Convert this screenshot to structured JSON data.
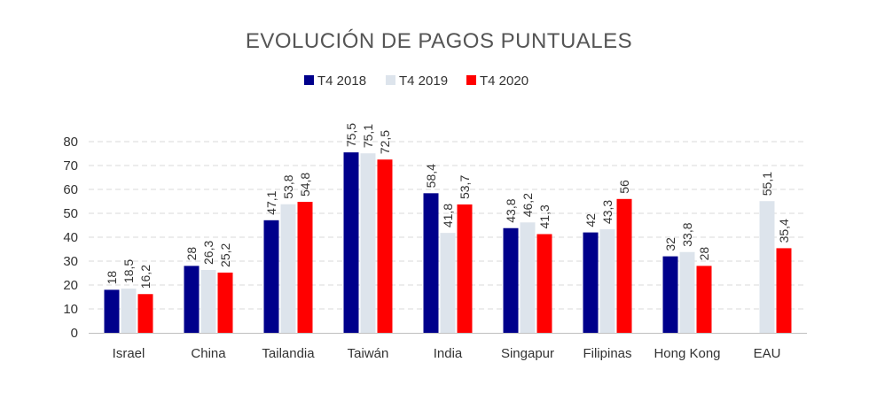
{
  "chart_data": {
    "type": "bar",
    "title": "EVOLUCIÓN DE PAGOS PUNTUALES",
    "xlabel": "",
    "ylabel": "",
    "ylim": [
      0,
      80
    ],
    "yticks": [
      "0",
      "10",
      "20",
      "30",
      "40",
      "50",
      "60",
      "70",
      "80"
    ],
    "grid": true,
    "legend_position": "top-center",
    "categories": [
      "Israel",
      "China",
      "Tailandia",
      "Taiwán",
      "India",
      "Singapur",
      "Filipinas",
      "Hong Kong",
      "EAU"
    ],
    "series": [
      {
        "name": "T4 2018",
        "color": "#00008b",
        "values": [
          18,
          28,
          47.1,
          75.5,
          58.4,
          43.8,
          42,
          32,
          null
        ],
        "labels": [
          "18",
          "28",
          "47,1",
          "75,5",
          "58,4",
          "43,8",
          "42",
          "32",
          ""
        ]
      },
      {
        "name": "T4 2019",
        "color": "#dde4ec",
        "values": [
          18.5,
          26.3,
          53.8,
          75.1,
          41.8,
          46.2,
          43.3,
          33.8,
          55.1
        ],
        "labels": [
          "18,5",
          "26,3",
          "53,8",
          "75,1",
          "41,8",
          "46,2",
          "43,3",
          "33,8",
          "55,1"
        ]
      },
      {
        "name": "T4 2020",
        "color": "#ff0000",
        "values": [
          16.2,
          25.2,
          54.8,
          72.5,
          53.7,
          41.3,
          56,
          28,
          35.4
        ],
        "labels": [
          "16,2",
          "25,2",
          "54,8",
          "72,5",
          "53,7",
          "41,3",
          "56",
          "28",
          "35,4"
        ]
      }
    ]
  }
}
